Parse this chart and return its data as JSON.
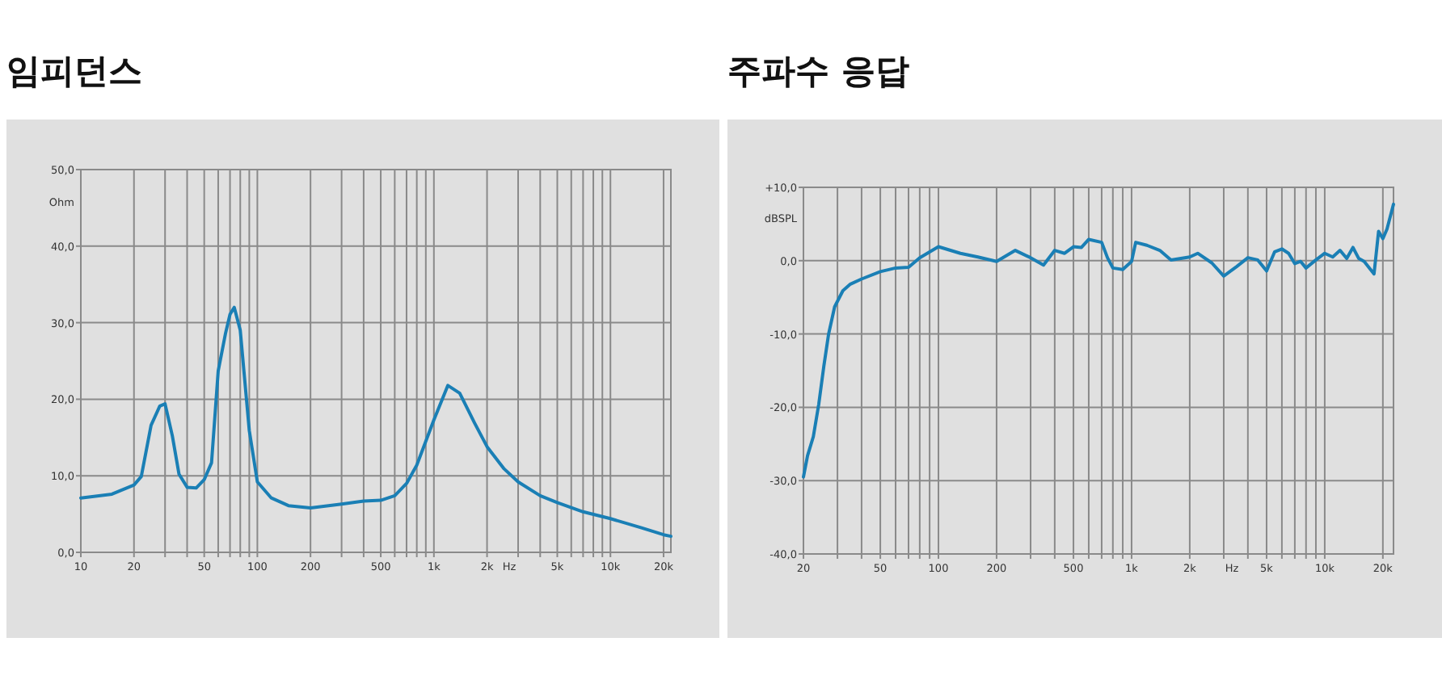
{
  "chart_data": [
    {
      "type": "line",
      "title": "임피던스",
      "ylabel": "Ohm",
      "annotations": [
        "Hz"
      ],
      "log": "x",
      "grid": true,
      "marker": "none",
      "line_style": "solid",
      "xlim": [
        10,
        22000
      ],
      "ylim": [
        0,
        50
      ],
      "xticks": [
        {
          "value": 10,
          "label": "10"
        },
        {
          "value": 20,
          "label": "20"
        },
        {
          "value": 30,
          "label": null
        },
        {
          "value": 40,
          "label": null
        },
        {
          "value": 50,
          "label": "50"
        },
        {
          "value": 60,
          "label": null
        },
        {
          "value": 70,
          "label": null
        },
        {
          "value": 80,
          "label": null
        },
        {
          "value": 90,
          "label": null
        },
        {
          "value": 100,
          "label": "100"
        },
        {
          "value": 200,
          "label": "200"
        },
        {
          "value": 300,
          "label": null
        },
        {
          "value": 400,
          "label": null
        },
        {
          "value": 500,
          "label": "500"
        },
        {
          "value": 600,
          "label": null
        },
        {
          "value": 700,
          "label": null
        },
        {
          "value": 800,
          "label": null
        },
        {
          "value": 900,
          "label": null
        },
        {
          "value": 1000,
          "label": "1k"
        },
        {
          "value": 2000,
          "label": "2k"
        },
        {
          "value": 3000,
          "label": null
        },
        {
          "value": 4000,
          "label": null
        },
        {
          "value": 5000,
          "label": "5k"
        },
        {
          "value": 6000,
          "label": null
        },
        {
          "value": 7000,
          "label": null
        },
        {
          "value": 8000,
          "label": null
        },
        {
          "value": 9000,
          "label": null
        },
        {
          "value": 10000,
          "label": "10k"
        },
        {
          "value": 20000,
          "label": "20k"
        }
      ],
      "yticks": [
        {
          "value": 0,
          "label": "0,0"
        },
        {
          "value": 10,
          "label": "10,0"
        },
        {
          "value": 20,
          "label": "20,0"
        },
        {
          "value": 30,
          "label": "30,0"
        },
        {
          "value": 40,
          "label": "40,0"
        },
        {
          "value": 50,
          "label": "50,0"
        }
      ],
      "series": [
        {
          "color": "#1a7fb5",
          "x": [
            10,
            15,
            20,
            22,
            25,
            28,
            30,
            33,
            36,
            40,
            45,
            50,
            55,
            60,
            66,
            70,
            74,
            80,
            90,
            100,
            120,
            150,
            200,
            300,
            400,
            500,
            600,
            700,
            800,
            1000,
            1200,
            1400,
            1700,
            2000,
            2500,
            3000,
            4000,
            5000,
            7000,
            10000,
            15000,
            20000,
            22000
          ],
          "values": [
            7.1,
            7.6,
            8.8,
            9.9,
            16.6,
            19.1,
            19.4,
            15.2,
            10.2,
            8.5,
            8.4,
            9.5,
            11.7,
            23.7,
            28.6,
            31.1,
            32.0,
            29.0,
            15.9,
            9.2,
            7.1,
            6.1,
            5.8,
            6.3,
            6.7,
            6.8,
            7.4,
            9.0,
            11.4,
            17.3,
            21.8,
            20.8,
            16.9,
            13.8,
            10.9,
            9.2,
            7.4,
            6.5,
            5.3,
            4.4,
            3.2,
            2.3,
            2.1
          ]
        }
      ]
    },
    {
      "type": "line",
      "title": "주파수 응답",
      "ylabel": "dBSPL",
      "annotations": [
        "Hz"
      ],
      "log": "x",
      "grid": true,
      "marker": "none",
      "line_style": "solid",
      "xlim": [
        20,
        22700
      ],
      "ylim": [
        -40,
        10
      ],
      "xticks": [
        {
          "value": 20,
          "label": "20"
        },
        {
          "value": 30,
          "label": null
        },
        {
          "value": 40,
          "label": null
        },
        {
          "value": 50,
          "label": "50"
        },
        {
          "value": 60,
          "label": null
        },
        {
          "value": 70,
          "label": null
        },
        {
          "value": 80,
          "label": null
        },
        {
          "value": 90,
          "label": null
        },
        {
          "value": 100,
          "label": "100"
        },
        {
          "value": 200,
          "label": "200"
        },
        {
          "value": 300,
          "label": null
        },
        {
          "value": 400,
          "label": null
        },
        {
          "value": 500,
          "label": "500"
        },
        {
          "value": 600,
          "label": null
        },
        {
          "value": 700,
          "label": null
        },
        {
          "value": 800,
          "label": null
        },
        {
          "value": 900,
          "label": null
        },
        {
          "value": 1000,
          "label": "1k"
        },
        {
          "value": 2000,
          "label": "2k"
        },
        {
          "value": 3000,
          "label": null
        },
        {
          "value": 4000,
          "label": null
        },
        {
          "value": 5000,
          "label": "5k"
        },
        {
          "value": 6000,
          "label": null
        },
        {
          "value": 7000,
          "label": null
        },
        {
          "value": 8000,
          "label": null
        },
        {
          "value": 9000,
          "label": null
        },
        {
          "value": 10000,
          "label": "10k"
        },
        {
          "value": 20000,
          "label": "20k"
        }
      ],
      "yticks": [
        {
          "value": -40,
          "label": "-40,0"
        },
        {
          "value": -30,
          "label": "-30,0"
        },
        {
          "value": -20,
          "label": "-20,0"
        },
        {
          "value": -10,
          "label": "-10,0"
        },
        {
          "value": 0,
          "label": "0,0"
        },
        {
          "value": 10,
          "label": "+10,0"
        }
      ],
      "series": [
        {
          "color": "#1a7fb5",
          "x": [
            20,
            21,
            22.5,
            24,
            25.5,
            27,
            29,
            32,
            35,
            40,
            50,
            60,
            70,
            80,
            100,
            130,
            160,
            200,
            250,
            300,
            350,
            400,
            450,
            500,
            550,
            600,
            700,
            750,
            800,
            900,
            1000,
            1050,
            1200,
            1400,
            1600,
            2000,
            2200,
            2600,
            3000,
            3500,
            4000,
            4500,
            5000,
            5500,
            6000,
            6500,
            7000,
            7500,
            8000,
            9000,
            10000,
            11000,
            12000,
            13000,
            14000,
            15000,
            16000,
            18000,
            19000,
            20000,
            21000,
            22700
          ],
          "values": [
            -29.5,
            -26.6,
            -24.0,
            -19.6,
            -14.4,
            -10.0,
            -6.3,
            -4.1,
            -3.2,
            -2.5,
            -1.5,
            -1.0,
            -0.9,
            0.4,
            1.9,
            1.0,
            0.5,
            -0.1,
            1.4,
            0.4,
            -0.6,
            1.4,
            1.0,
            1.9,
            1.8,
            2.9,
            2.5,
            0.4,
            -1.0,
            -1.2,
            -0.1,
            2.5,
            2.1,
            1.4,
            0.1,
            0.5,
            1.0,
            -0.3,
            -2.1,
            -0.8,
            0.4,
            0.1,
            -1.4,
            1.2,
            1.6,
            1.0,
            -0.4,
            -0.1,
            -1.0,
            0.1,
            1.0,
            0.5,
            1.4,
            0.3,
            1.8,
            0.3,
            -0.1,
            -1.8,
            4.0,
            3.0,
            4.3,
            7.7
          ]
        }
      ]
    }
  ]
}
